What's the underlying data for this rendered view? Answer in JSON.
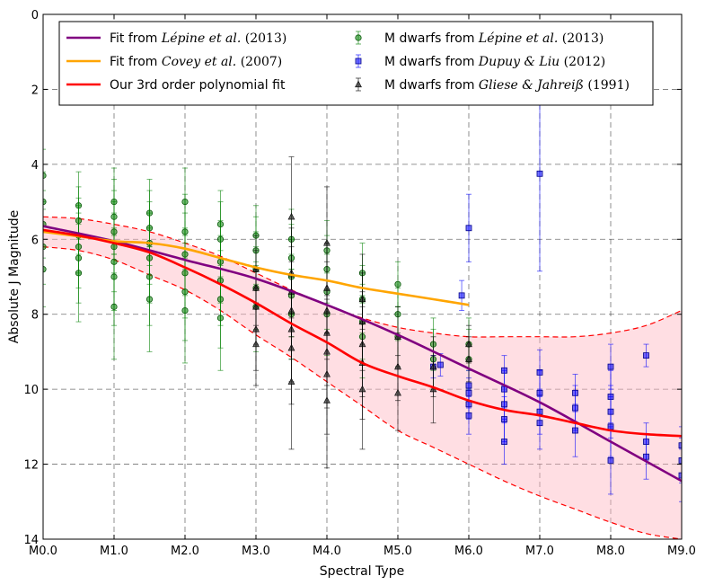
{
  "chart_data": {
    "type": "scatter",
    "title": "",
    "xlabel": "Spectral Type",
    "ylabel": "Absolute J Magnitude",
    "xlim": [
      0,
      9
    ],
    "ylim": [
      14,
      0
    ],
    "y_inverted": true,
    "grid": true,
    "legend_position": "top",
    "x_ticks": [
      0,
      1,
      2,
      3,
      4,
      5,
      6,
      7,
      8,
      9
    ],
    "x_tick_labels": [
      "M0.0",
      "M1.0",
      "M2.0",
      "M3.0",
      "M4.0",
      "M5.0",
      "M6.0",
      "M7.0",
      "M8.0",
      "M9.0"
    ],
    "y_ticks": [
      0,
      2,
      4,
      6,
      8,
      10,
      12,
      14
    ],
    "y_tick_labels": [
      "0",
      "2",
      "4",
      "6",
      "8",
      "10",
      "12",
      "14"
    ],
    "legend": [
      {
        "label": "Fit from ",
        "italic": "Lépine et al.",
        "num": "(2013)",
        "color": "#800080",
        "kind": "line"
      },
      {
        "label": "Fit from ",
        "italic": "Covey et al.",
        "num": "(2007)",
        "color": "#FFA500",
        "kind": "line"
      },
      {
        "label": "Our 3rd order polynomial fit",
        "italic": "",
        "num": "",
        "color": "#FF0000",
        "kind": "line"
      },
      {
        "label": "M dwarfs from ",
        "italic": "Lépine et al.",
        "num": "(2013)",
        "color": "#008000",
        "kind": "circle"
      },
      {
        "label": "M dwarfs from ",
        "italic": "Dupuy & Liu",
        "num": "(2012)",
        "color": "#0000FF",
        "kind": "square"
      },
      {
        "label": "M dwarfs from ",
        "italic": "Gliese & Jahreiß",
        "num": "(1991)",
        "color": "#000000",
        "kind": "triangle"
      }
    ],
    "fits": {
      "lepine_2013": {
        "color": "#800080",
        "x": [
          0,
          1,
          2,
          3,
          4,
          5,
          6,
          7,
          8,
          9
        ],
        "y": [
          5.65,
          6.05,
          6.55,
          7.05,
          7.75,
          8.55,
          9.45,
          10.35,
          11.4,
          12.45
        ]
      },
      "covey_2007": {
        "color": "#FFA500",
        "x": [
          0,
          0.5,
          1,
          1.5,
          2,
          2.5,
          3,
          3.5,
          4,
          4.5,
          5,
          5.5,
          6
        ],
        "y": [
          5.8,
          5.92,
          6.05,
          6.1,
          6.25,
          6.5,
          6.75,
          6.95,
          7.1,
          7.3,
          7.45,
          7.6,
          7.75
        ]
      },
      "polynomial_3rd": {
        "color": "#FF0000",
        "x": [
          0,
          0.5,
          1,
          1.5,
          2,
          2.5,
          3,
          3.5,
          4,
          4.5,
          5,
          5.5,
          6,
          6.5,
          7,
          7.5,
          8,
          8.5,
          9
        ],
        "y": [
          5.75,
          5.9,
          6.1,
          6.35,
          6.75,
          7.2,
          7.7,
          8.25,
          8.75,
          9.3,
          9.65,
          9.95,
          10.3,
          10.55,
          10.7,
          10.9,
          11.1,
          11.2,
          11.25
        ]
      },
      "confidence_upper": {
        "x": [
          0,
          0.5,
          1,
          1.5,
          2,
          2.5,
          3,
          3.5,
          4,
          4.5,
          5,
          5.5,
          6,
          6.5,
          7,
          7.5,
          8,
          8.5,
          9
        ],
        "y": [
          5.4,
          5.45,
          5.6,
          5.8,
          6.1,
          6.45,
          6.9,
          7.35,
          7.75,
          8.1,
          8.35,
          8.5,
          8.6,
          8.6,
          8.6,
          8.6,
          8.5,
          8.3,
          7.9
        ]
      },
      "confidence_lower": {
        "x": [
          0,
          0.5,
          1,
          1.5,
          2,
          2.5,
          3,
          3.5,
          4,
          4.5,
          5,
          5.5,
          6,
          6.5,
          7,
          7.5,
          8,
          8.5,
          9
        ],
        "y": [
          6.2,
          6.3,
          6.55,
          6.95,
          7.35,
          7.9,
          8.55,
          9.15,
          9.8,
          10.45,
          11.1,
          11.55,
          12.0,
          12.45,
          12.85,
          13.2,
          13.55,
          13.85,
          14.0
        ]
      }
    },
    "series": [
      {
        "name": "M dwarfs from Lépine et al. (2013)",
        "marker": "circle",
        "color": "#008000",
        "x": [
          0,
          0,
          0,
          0,
          0,
          0.5,
          0.5,
          0.5,
          0.5,
          0.5,
          0.5,
          1,
          1,
          1,
          1,
          1,
          1,
          1,
          1.5,
          1.5,
          1.5,
          1.5,
          1.5,
          1.5,
          2,
          2,
          2,
          2,
          2,
          2,
          2.5,
          2.5,
          2.5,
          2.5,
          2.5,
          2.5,
          3,
          3,
          3,
          3,
          3,
          3.5,
          3.5,
          3.5,
          3.5,
          3.5,
          4,
          4,
          4,
          4,
          4.5,
          4.5,
          4.5,
          4.5,
          5,
          5,
          5,
          5.5,
          5.5,
          6,
          6
        ],
        "y": [
          4.3,
          5.0,
          5.6,
          6.2,
          6.8,
          5.1,
          5.5,
          5.9,
          6.2,
          6.5,
          6.9,
          5.0,
          5.4,
          5.8,
          6.2,
          6.6,
          7.0,
          7.8,
          5.3,
          5.7,
          6.1,
          6.5,
          7.0,
          7.6,
          5.0,
          5.8,
          6.4,
          6.9,
          7.4,
          7.9,
          5.6,
          6.0,
          6.6,
          7.1,
          7.6,
          8.1,
          5.9,
          6.3,
          6.8,
          7.3,
          7.8,
          6.0,
          6.5,
          7.0,
          7.5,
          8.0,
          6.3,
          6.8,
          7.4,
          8.0,
          6.9,
          7.6,
          8.2,
          8.6,
          7.2,
          8.0,
          8.6,
          8.8,
          9.2,
          8.8,
          9.2
        ],
        "yerr": [
          0.7,
          0.8,
          0.9,
          1.0,
          1.0,
          0.9,
          0.9,
          1.0,
          1.1,
          1.2,
          1.3,
          0.9,
          1.0,
          1.1,
          1.2,
          1.3,
          1.3,
          1.4,
          0.9,
          1.0,
          1.1,
          1.2,
          1.3,
          1.4,
          0.9,
          1.0,
          1.1,
          1.2,
          1.3,
          1.4,
          0.9,
          1.0,
          1.1,
          1.2,
          1.3,
          1.4,
          0.8,
          0.9,
          1.0,
          1.1,
          1.2,
          0.8,
          0.9,
          1.0,
          1.1,
          1.2,
          0.8,
          0.9,
          1.0,
          1.1,
          0.8,
          0.9,
          1.0,
          1.1,
          0.6,
          0.7,
          0.8,
          0.7,
          0.8,
          0.7,
          0.8
        ]
      },
      {
        "name": "M dwarfs from Dupuy & Liu (2012)",
        "marker": "square",
        "color": "#0000FF",
        "x": [
          5.5,
          5.6,
          5.9,
          6.0,
          6.0,
          6.0,
          6.0,
          6.0,
          6.5,
          6.5,
          6.5,
          6.5,
          6.5,
          7.0,
          7.0,
          7.0,
          7.0,
          7.0,
          7.5,
          7.5,
          7.5,
          8.0,
          8.0,
          8.0,
          8.0,
          8.0,
          8.5,
          8.5,
          8.5,
          9.0,
          9.0,
          9.0
        ],
        "y": [
          9.4,
          9.35,
          7.5,
          5.7,
          9.9,
          10.1,
          10.4,
          10.7,
          9.5,
          10.0,
          10.4,
          10.8,
          11.4,
          4.25,
          9.55,
          10.1,
          10.6,
          10.9,
          10.1,
          10.5,
          11.1,
          9.4,
          10.2,
          10.6,
          11.0,
          11.9,
          9.1,
          11.4,
          11.8,
          11.5,
          11.9,
          12.3
        ],
        "yerr": [
          0.3,
          0.3,
          0.4,
          0.9,
          0.4,
          0.4,
          0.4,
          0.5,
          0.4,
          0.5,
          0.5,
          0.6,
          0.6,
          2.6,
          0.6,
          0.6,
          0.6,
          0.7,
          0.5,
          0.6,
          0.7,
          0.6,
          0.7,
          0.7,
          0.8,
          0.9,
          0.3,
          0.5,
          0.6,
          0.5,
          0.6,
          0.7
        ]
      },
      {
        "name": "M dwarfs from Gliese & Jahreiß (1991)",
        "marker": "triangle",
        "color": "#000000",
        "x": [
          3,
          3,
          3,
          3,
          3,
          3.5,
          3.5,
          3.5,
          3.5,
          3.5,
          3.5,
          3.5,
          4,
          4,
          4,
          4,
          4,
          4,
          4,
          4.5,
          4.5,
          4.5,
          4.5,
          4.5,
          5,
          5,
          5,
          5.5,
          5.5,
          6,
          6
        ],
        "y": [
          6.8,
          7.3,
          7.8,
          8.4,
          8.8,
          5.4,
          6.9,
          7.4,
          7.9,
          8.4,
          8.9,
          9.8,
          6.1,
          7.3,
          7.9,
          8.5,
          9.0,
          9.6,
          10.3,
          7.6,
          8.2,
          8.8,
          9.3,
          10.0,
          8.6,
          9.4,
          10.1,
          9.4,
          10.0,
          8.8,
          9.2
        ],
        "yerr": [
          0.9,
          1.0,
          1.0,
          1.1,
          1.1,
          1.6,
          1.2,
          1.2,
          1.3,
          1.4,
          1.5,
          1.8,
          1.5,
          1.2,
          1.3,
          1.4,
          1.5,
          1.6,
          1.8,
          1.2,
          1.3,
          1.4,
          1.5,
          1.6,
          0.8,
          0.9,
          1.0,
          0.8,
          0.9,
          0.5,
          0.6
        ]
      }
    ]
  }
}
